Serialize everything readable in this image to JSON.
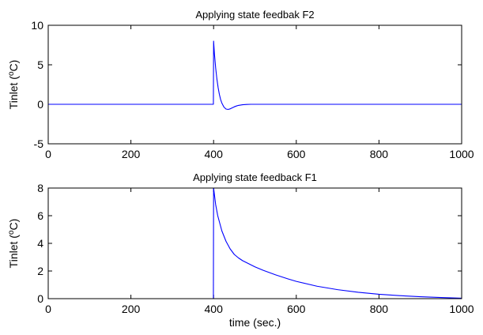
{
  "chart_data": [
    {
      "type": "line",
      "title": "Applying state feedbak F2",
      "ylabel_main": "Tinlet (",
      "ylabel_sup": "o",
      "ylabel_tail": "C)",
      "xlabel": "",
      "xlim": [
        0,
        1000
      ],
      "ylim": [
        -5,
        10
      ],
      "xticks": [
        0,
        200,
        400,
        600,
        800,
        1000
      ],
      "yticks": [
        -5,
        0,
        5,
        10
      ],
      "grid": false,
      "line_color": "#0000ff",
      "series": [
        {
          "x": [
            0,
            399.5,
            400,
            402,
            405,
            408,
            411,
            414,
            417,
            420,
            425,
            430,
            435,
            440,
            445,
            450,
            455,
            460,
            470,
            480,
            490,
            500,
            520,
            550,
            600,
            700,
            800,
            900,
            1000
          ],
          "values": [
            0,
            0,
            8,
            6.4,
            4.6,
            3.2,
            2.1,
            1.25,
            0.6,
            0.15,
            -0.35,
            -0.6,
            -0.65,
            -0.58,
            -0.45,
            -0.32,
            -0.22,
            -0.14,
            -0.06,
            -0.02,
            0,
            0,
            0,
            0,
            0,
            0,
            0,
            0,
            0
          ]
        }
      ]
    },
    {
      "type": "line",
      "title": "Applying state feedback F1",
      "ylabel_main": "Tinlet (",
      "ylabel_sup": "o",
      "ylabel_tail": "C)",
      "xlabel": "time (sec.)",
      "xlim": [
        0,
        1000
      ],
      "ylim": [
        0,
        8
      ],
      "xticks": [
        0,
        200,
        400,
        600,
        800,
        1000
      ],
      "yticks": [
        0,
        2,
        4,
        6,
        8
      ],
      "grid": false,
      "line_color": "#0000ff",
      "series": [
        {
          "x": [
            0,
            399.5,
            400,
            405,
            410,
            420,
            430,
            440,
            450,
            460,
            470,
            480,
            500,
            520,
            550,
            580,
            600,
            650,
            700,
            750,
            800,
            850,
            900,
            950,
            1000
          ],
          "values": [
            0,
            0,
            8,
            6.8,
            6.0,
            4.9,
            4.15,
            3.6,
            3.2,
            2.95,
            2.75,
            2.6,
            2.3,
            2.05,
            1.72,
            1.43,
            1.25,
            0.9,
            0.65,
            0.46,
            0.32,
            0.22,
            0.14,
            0.08,
            0.03
          ]
        }
      ]
    }
  ]
}
